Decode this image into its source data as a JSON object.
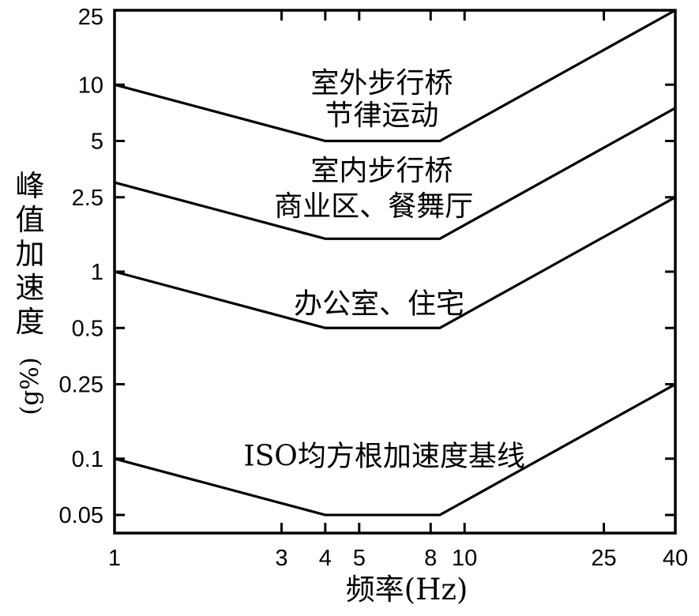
{
  "chart_data": {
    "type": "line",
    "title": "",
    "xlabel": "频率(Hz)",
    "ylabel": "峰值加速度(g%)",
    "ylabel_cjk": "峰值加速度",
    "ylabel_unit": "(g%)",
    "x_scale": "log",
    "y_scale": "log",
    "xlim": [
      1,
      40
    ],
    "ylim": [
      0.04,
      25
    ],
    "x_ticks": [
      1,
      3,
      4,
      5,
      8,
      10,
      25,
      40
    ],
    "y_ticks": [
      25,
      10,
      5,
      2.5,
      1,
      0.5,
      0.25,
      0.1,
      0.05
    ],
    "grid": false,
    "legend_position": "none",
    "line_color": "#000000",
    "background": "#ffffff",
    "series": [
      {
        "name": "室外步行桥、节律运动",
        "points": [
          [
            1,
            10
          ],
          [
            4,
            5
          ],
          [
            8.5,
            5
          ],
          [
            40,
            25
          ]
        ]
      },
      {
        "name": "室内步行桥、商业区、餐舞厅",
        "points": [
          [
            1,
            3
          ],
          [
            4,
            1.5
          ],
          [
            8.5,
            1.5
          ],
          [
            40,
            7.5
          ]
        ]
      },
      {
        "name": "办公室、住宅",
        "points": [
          [
            1,
            1
          ],
          [
            4,
            0.5
          ],
          [
            8.5,
            0.5
          ],
          [
            40,
            2.5
          ]
        ]
      },
      {
        "name": "ISO均方根加速度基线",
        "points": [
          [
            1,
            0.1
          ],
          [
            4,
            0.05
          ],
          [
            8.5,
            0.05
          ],
          [
            40,
            0.25
          ]
        ]
      }
    ],
    "annotations": [
      {
        "text": "室外步行桥",
        "x": 5.8,
        "y": 10.3
      },
      {
        "text": "节律运动",
        "x": 5.8,
        "y": 6.9
      },
      {
        "text": "室内步行桥",
        "x": 5.8,
        "y": 3.5
      },
      {
        "text": "商业区、餐舞厅",
        "x": 5.5,
        "y": 2.25
      },
      {
        "text": "办公室、住宅",
        "x": 5.7,
        "y": 0.68
      },
      {
        "text": "ISO均方根加速度基线",
        "x": 5.9,
        "y": 0.104
      }
    ]
  }
}
